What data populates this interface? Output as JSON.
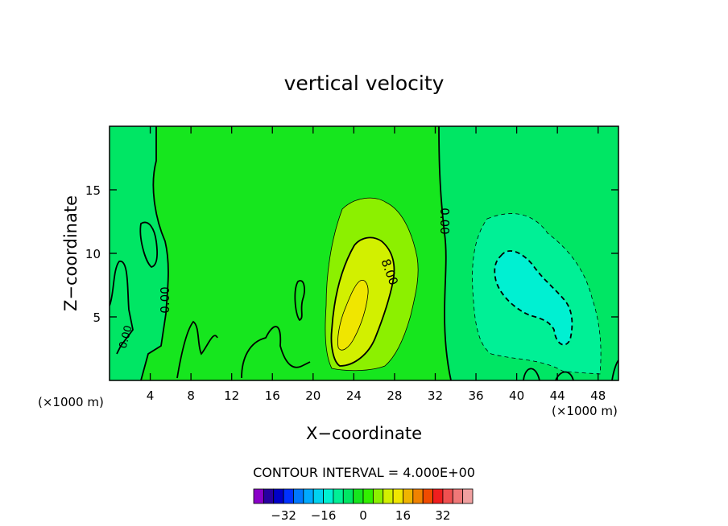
{
  "chart_data": {
    "type": "contour",
    "title": "vertical velocity",
    "xlabel": "X−coordinate",
    "ylabel": "Z−coordinate",
    "x_units": "(×1000 m)",
    "xlim": [
      0,
      50
    ],
    "ylim": [
      0,
      20
    ],
    "x_ticks": [
      4,
      8,
      12,
      16,
      20,
      24,
      28,
      32,
      36,
      40,
      44,
      48
    ],
    "x_tick_labels": [
      "4",
      "8",
      "12",
      "16",
      "20",
      "24",
      "28",
      "32",
      "36",
      "40",
      "44",
      "48"
    ],
    "y_ticks": [
      5,
      10,
      15
    ],
    "y_tick_labels": [
      "5",
      "10",
      "15"
    ],
    "contour_interval_label": "CONTOUR INTERVAL = 4.000E+00",
    "contour_labels": [
      "0.00",
      "0.00",
      "0.00",
      "8.00"
    ],
    "colorbar": {
      "colors": [
        "#8a00c8",
        "#2800a0",
        "#0000c8",
        "#0032ff",
        "#0078ff",
        "#00aaff",
        "#00d2f0",
        "#00f0d2",
        "#00f096",
        "#00e664",
        "#16e61e",
        "#32f000",
        "#8cf000",
        "#d2f000",
        "#f0e600",
        "#f0b400",
        "#f08200",
        "#f04b00",
        "#f01e1e",
        "#f05050",
        "#f07878",
        "#f0a0a0"
      ],
      "tick_values": [
        -32,
        -16,
        0,
        16,
        32
      ],
      "tick_labels": [
        "−32",
        "−16",
        "0",
        "16",
        "32"
      ]
    },
    "field_summary": {
      "background_value_range": [
        0,
        4
      ],
      "updraft": {
        "x_center": 24,
        "z_center": 5,
        "max_value": 16
      },
      "downdraft": {
        "x_center": 41,
        "z_center": 7,
        "min_value": -8
      }
    }
  }
}
